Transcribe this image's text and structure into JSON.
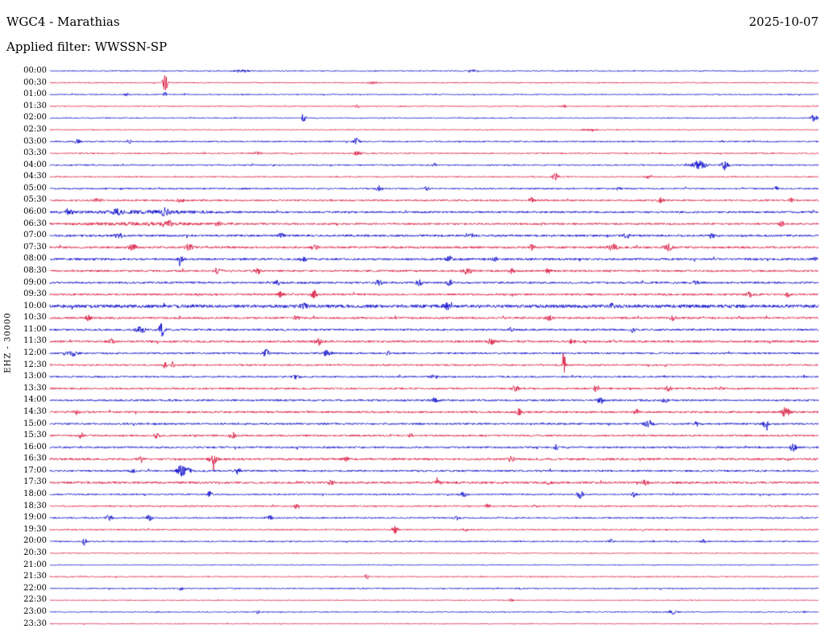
{
  "header": {
    "station_title": "WGC4 - Marathias",
    "date": "2025-10-07",
    "filter_label": "Applied filter: WWSSN-SP"
  },
  "axis": {
    "left_label": "EHZ - 30000"
  },
  "palette": {
    "trace_blue": "#0000c8",
    "trace_red": "#d81038",
    "text": "#000000",
    "background": "#ffffff"
  },
  "chart_data": {
    "type": "line",
    "subtype": "helicorder-seismogram-dayplot",
    "title": "WGC4 - Marathias",
    "date": "2025-10-07",
    "filter": "WWSSN-SP",
    "channel_scale_label": "EHZ - 30000",
    "row_minutes": 30,
    "x_range_fraction": [
      0,
      1
    ],
    "amplitude_units": "pixels",
    "rows": [
      {
        "label": "00:00",
        "color": "blue",
        "noise": 0.7,
        "events": [
          [
            0.25,
            1.5,
            0.01
          ],
          [
            0.55,
            1.2,
            0.01
          ]
        ]
      },
      {
        "label": "00:30",
        "color": "red",
        "noise": 0.7,
        "events": [
          [
            0.15,
            12,
            0.003
          ],
          [
            0.42,
            1.5,
            0.006
          ]
        ]
      },
      {
        "label": "01:00",
        "color": "blue",
        "noise": 0.7,
        "events": [
          [
            0.15,
            3,
            0.002
          ],
          [
            0.1,
            1.5,
            0.004
          ]
        ]
      },
      {
        "label": "01:30",
        "color": "red",
        "noise": 0.7,
        "events": [
          [
            0.4,
            2.5,
            0.003
          ],
          [
            0.67,
            2,
            0.003
          ]
        ]
      },
      {
        "label": "02:00",
        "color": "blue",
        "noise": 0.7,
        "events": [
          [
            0.33,
            6,
            0.0025
          ],
          [
            0.994,
            5,
            0.004
          ]
        ]
      },
      {
        "label": "02:30",
        "color": "red",
        "noise": 0.6,
        "events": [
          [
            0.7,
            1.2,
            0.01
          ]
        ]
      },
      {
        "label": "03:00",
        "color": "blue",
        "noise": 0.9,
        "events": [
          [
            0.035,
            3,
            0.004
          ],
          [
            0.103,
            2.5,
            0.003
          ],
          [
            0.399,
            4.5,
            0.004
          ]
        ]
      },
      {
        "label": "03:30",
        "color": "red",
        "noise": 0.8,
        "events": [
          [
            0.27,
            2.5,
            0.004
          ],
          [
            0.4,
            2,
            0.006
          ]
        ]
      },
      {
        "label": "04:00",
        "color": "blue",
        "noise": 0.9,
        "events": [
          [
            0.845,
            6,
            0.009
          ],
          [
            0.878,
            8,
            0.004
          ],
          [
            0.5,
            2,
            0.003
          ]
        ]
      },
      {
        "label": "04:30",
        "color": "red",
        "noise": 0.8,
        "events": [
          [
            0.658,
            4.5,
            0.004
          ],
          [
            0.78,
            2.5,
            0.004
          ]
        ]
      },
      {
        "label": "05:00",
        "color": "blue",
        "noise": 1.0,
        "events": [
          [
            0.428,
            3.5,
            0.004
          ],
          [
            0.49,
            2.5,
            0.003
          ],
          [
            0.74,
            2,
            0.004
          ],
          [
            0.945,
            2.5,
            0.003
          ]
        ]
      },
      {
        "label": "05:30",
        "color": "red",
        "noise": 1.1,
        "events": [
          [
            0.06,
            2.5,
            0.004
          ],
          [
            0.17,
            2.5,
            0.004
          ],
          [
            0.627,
            4,
            0.004
          ],
          [
            0.794,
            3,
            0.004
          ],
          [
            0.965,
            2.5,
            0.003
          ]
        ]
      },
      {
        "label": "06:00",
        "color": "blue",
        "noise": 1.3,
        "events": [
          [
            0.024,
            4,
            0.005
          ],
          [
            0.087,
            3,
            0.004
          ],
          [
            0.15,
            6,
            0.004
          ],
          [
            0.12,
            1.5,
            0.09
          ]
        ]
      },
      {
        "label": "06:30",
        "color": "red",
        "noise": 1.2,
        "events": [
          [
            0.155,
            4,
            0.004
          ],
          [
            0.218,
            3,
            0.004
          ],
          [
            0.952,
            3.5,
            0.003
          ],
          [
            0.12,
            1.2,
            0.09
          ]
        ]
      },
      {
        "label": "07:00",
        "color": "blue",
        "noise": 1.4,
        "events": [
          [
            0.09,
            3,
            0.005
          ],
          [
            0.3,
            3,
            0.004
          ],
          [
            0.55,
            2.5,
            0.004
          ],
          [
            0.75,
            3,
            0.004
          ],
          [
            0.86,
            3,
            0.004
          ]
        ]
      },
      {
        "label": "07:30",
        "color": "red",
        "noise": 1.4,
        "events": [
          [
            0.108,
            4,
            0.005
          ],
          [
            0.181,
            4,
            0.005
          ],
          [
            0.344,
            3.5,
            0.004
          ],
          [
            0.627,
            3,
            0.004
          ],
          [
            0.732,
            4,
            0.006
          ],
          [
            0.805,
            4,
            0.005
          ]
        ]
      },
      {
        "label": "08:00",
        "color": "blue",
        "noise": 1.4,
        "events": [
          [
            0.17,
            3,
            0.004
          ],
          [
            0.33,
            3,
            0.004
          ],
          [
            0.52,
            3.5,
            0.004
          ],
          [
            0.58,
            3,
            0.004
          ],
          [
            0.994,
            4,
            0.003
          ]
        ]
      },
      {
        "label": "08:30",
        "color": "red",
        "noise": 1.3,
        "events": [
          [
            0.218,
            4.5,
            0.004
          ],
          [
            0.27,
            4,
            0.004
          ],
          [
            0.543,
            4,
            0.005
          ],
          [
            0.648,
            3,
            0.004
          ],
          [
            0.6,
            3,
            0.004
          ]
        ]
      },
      {
        "label": "09:00",
        "color": "blue",
        "noise": 1.3,
        "events": [
          [
            0.297,
            3,
            0.004
          ],
          [
            0.428,
            3.5,
            0.004
          ],
          [
            0.48,
            4,
            0.004
          ],
          [
            0.52,
            3.5,
            0.004
          ],
          [
            0.84,
            3,
            0.004
          ]
        ]
      },
      {
        "label": "09:30",
        "color": "red",
        "noise": 1.3,
        "events": [
          [
            0.3,
            3,
            0.004
          ],
          [
            0.344,
            5,
            0.004
          ],
          [
            0.91,
            3,
            0.004
          ],
          [
            0.96,
            3,
            0.003
          ]
        ]
      },
      {
        "label": "10:00",
        "color": "blue",
        "noise": 2.2,
        "events": [
          [
            0.517,
            4,
            0.004
          ],
          [
            0.732,
            3,
            0.004
          ],
          [
            0.33,
            3,
            0.004
          ]
        ]
      },
      {
        "label": "10:30",
        "color": "red",
        "noise": 1.3,
        "events": [
          [
            0.05,
            3,
            0.004
          ],
          [
            0.32,
            3,
            0.004
          ],
          [
            0.65,
            3,
            0.004
          ],
          [
            0.81,
            3,
            0.004
          ]
        ]
      },
      {
        "label": "11:00",
        "color": "blue",
        "noise": 1.3,
        "events": [
          [
            0.118,
            4,
            0.006
          ],
          [
            0.145,
            9,
            0.004
          ],
          [
            0.758,
            3.5,
            0.003
          ],
          [
            0.6,
            3,
            0.003
          ]
        ]
      },
      {
        "label": "11:30",
        "color": "red",
        "noise": 1.4,
        "events": [
          [
            0.08,
            3,
            0.004
          ],
          [
            0.349,
            4.5,
            0.004
          ],
          [
            0.574,
            3.5,
            0.004
          ],
          [
            0.679,
            3,
            0.004
          ]
        ]
      },
      {
        "label": "12:00",
        "color": "blue",
        "noise": 1.2,
        "events": [
          [
            0.029,
            4.5,
            0.006
          ],
          [
            0.281,
            5,
            0.004
          ],
          [
            0.36,
            4,
            0.005
          ],
          [
            0.44,
            2.5,
            0.003
          ]
        ]
      },
      {
        "label": "12:30",
        "color": "red",
        "noise": 1.1,
        "events": [
          [
            0.15,
            5,
            0.002
          ],
          [
            0.16,
            5,
            0.002
          ],
          [
            0.669,
            34,
            0.0015
          ]
        ]
      },
      {
        "label": "13:00",
        "color": "blue",
        "noise": 1.1,
        "events": [
          [
            0.32,
            3,
            0.004
          ],
          [
            0.5,
            2.5,
            0.004
          ]
        ]
      },
      {
        "label": "13:30",
        "color": "red",
        "noise": 1.2,
        "events": [
          [
            0.606,
            4,
            0.004
          ],
          [
            0.711,
            4,
            0.004
          ],
          [
            0.805,
            3.5,
            0.004
          ],
          [
            0.87,
            3,
            0.004
          ]
        ]
      },
      {
        "label": "14:00",
        "color": "blue",
        "noise": 1.2,
        "events": [
          [
            0.501,
            3,
            0.004
          ],
          [
            0.716,
            4.5,
            0.004
          ],
          [
            0.8,
            3,
            0.004
          ]
        ]
      },
      {
        "label": "14:30",
        "color": "red",
        "noise": 1.3,
        "events": [
          [
            0.035,
            3,
            0.003
          ],
          [
            0.611,
            4,
            0.004
          ],
          [
            0.763,
            3.5,
            0.004
          ],
          [
            0.957,
            6,
            0.005
          ]
        ]
      },
      {
        "label": "15:00",
        "color": "blue",
        "noise": 1.2,
        "events": [
          [
            0.779,
            5,
            0.005
          ],
          [
            0.842,
            3,
            0.004
          ],
          [
            0.931,
            4,
            0.004
          ]
        ]
      },
      {
        "label": "15:30",
        "color": "red",
        "noise": 1.2,
        "events": [
          [
            0.04,
            4,
            0.003
          ],
          [
            0.139,
            3.5,
            0.003
          ],
          [
            0.239,
            3.5,
            0.003
          ],
          [
            0.47,
            2.5,
            0.003
          ]
        ]
      },
      {
        "label": "16:00",
        "color": "blue",
        "noise": 1.2,
        "events": [
          [
            0.658,
            4,
            0.003
          ],
          [
            0.967,
            5,
            0.004
          ]
        ]
      },
      {
        "label": "16:30",
        "color": "red",
        "noise": 1.4,
        "events": [
          [
            0.118,
            4,
            0.004
          ],
          [
            0.213,
            5,
            0.005
          ],
          [
            0.386,
            3,
            0.004
          ],
          [
            0.6,
            3,
            0.004
          ]
        ]
      },
      {
        "label": "17:00",
        "color": "blue",
        "noise": 1.2,
        "events": [
          [
            0.171,
            8,
            0.005
          ],
          [
            0.181,
            5,
            0.003
          ],
          [
            0.244,
            4,
            0.004
          ],
          [
            0.108,
            3,
            0.003
          ]
        ]
      },
      {
        "label": "17:30",
        "color": "red",
        "noise": 1.4,
        "events": [
          [
            0.365,
            3,
            0.004
          ],
          [
            0.506,
            3,
            0.004
          ],
          [
            0.648,
            3,
            0.004
          ],
          [
            0.774,
            3,
            0.004
          ]
        ]
      },
      {
        "label": "18:00",
        "color": "blue",
        "noise": 1.0,
        "events": [
          [
            0.208,
            4.5,
            0.003
          ],
          [
            0.538,
            3,
            0.004
          ],
          [
            0.69,
            5,
            0.004
          ],
          [
            0.76,
            3,
            0.003
          ]
        ]
      },
      {
        "label": "18:30",
        "color": "red",
        "noise": 1.0,
        "events": [
          [
            0.32,
            2.5,
            0.003
          ],
          [
            0.57,
            2.5,
            0.003
          ]
        ]
      },
      {
        "label": "19:00",
        "color": "blue",
        "noise": 1.0,
        "events": [
          [
            0.077,
            3.5,
            0.004
          ],
          [
            0.129,
            4,
            0.004
          ],
          [
            0.286,
            4.5,
            0.003
          ],
          [
            0.53,
            2.5,
            0.003
          ]
        ]
      },
      {
        "label": "19:30",
        "color": "red",
        "noise": 0.9,
        "events": [
          [
            0.449,
            5,
            0.004
          ],
          [
            0.54,
            2.5,
            0.003
          ]
        ]
      },
      {
        "label": "20:00",
        "color": "blue",
        "noise": 0.9,
        "events": [
          [
            0.045,
            4,
            0.003
          ],
          [
            0.73,
            2.5,
            0.003
          ],
          [
            0.85,
            2.5,
            0.003
          ]
        ]
      },
      {
        "label": "20:30",
        "color": "red",
        "noise": 0.6,
        "events": []
      },
      {
        "label": "21:00",
        "color": "blue",
        "noise": 0.6,
        "events": []
      },
      {
        "label": "21:30",
        "color": "red",
        "noise": 0.7,
        "events": [
          [
            0.412,
            3,
            0.003
          ]
        ]
      },
      {
        "label": "22:00",
        "color": "blue",
        "noise": 0.8,
        "events": [
          [
            0.17,
            2,
            0.003
          ],
          [
            0.61,
            2,
            0.003
          ]
        ]
      },
      {
        "label": "22:30",
        "color": "red",
        "noise": 0.6,
        "events": [
          [
            0.6,
            2,
            0.003
          ]
        ]
      },
      {
        "label": "23:00",
        "color": "blue",
        "noise": 0.7,
        "events": [
          [
            0.81,
            3.5,
            0.004
          ],
          [
            0.27,
            2,
            0.003
          ]
        ]
      },
      {
        "label": "23:30",
        "color": "red",
        "noise": 0.6,
        "events": []
      }
    ]
  }
}
